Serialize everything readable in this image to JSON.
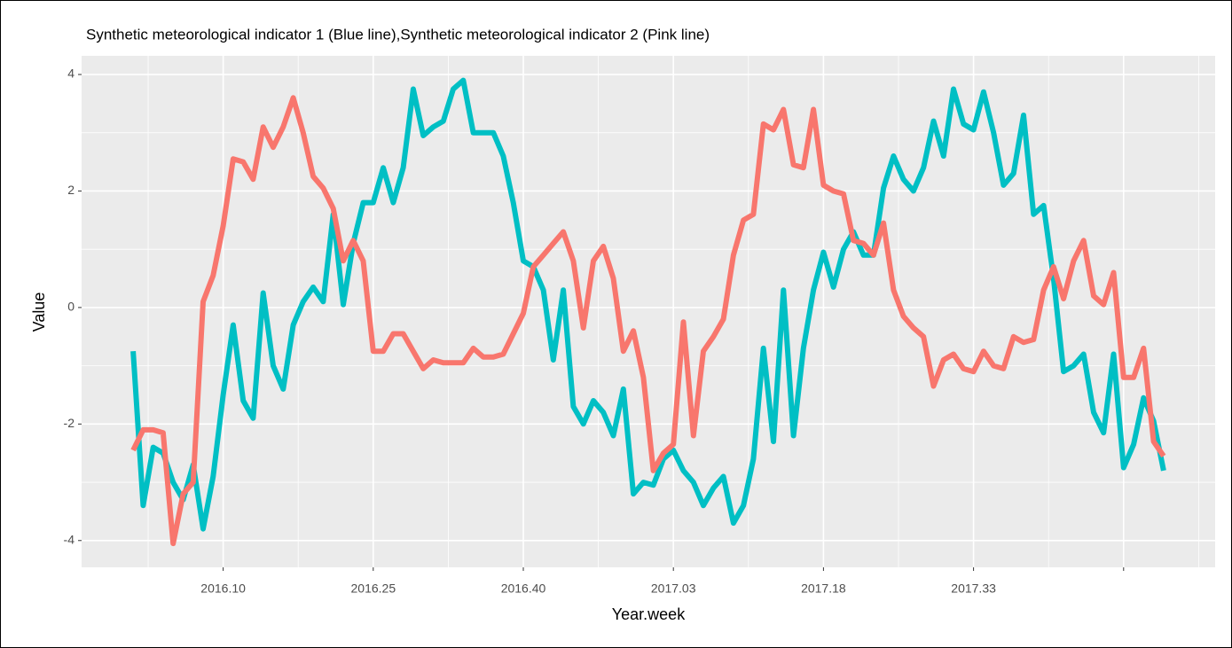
{
  "chart_data": {
    "type": "line",
    "title": "Synthetic meteorological indicator 1 (Blue line),Synthetic meteorological indicator 2 (Pink line)",
    "x_label": "Year.week",
    "y_label": "Value",
    "categories": [
      null,
      null,
      null,
      null,
      null,
      null,
      null,
      null,
      null,
      "2016.10",
      null,
      null,
      null,
      null,
      null,
      null,
      null,
      null,
      null,
      null,
      null,
      null,
      null,
      null,
      "2016.25",
      null,
      null,
      null,
      null,
      null,
      null,
      null,
      null,
      null,
      null,
      null,
      null,
      null,
      null,
      "2016.40",
      null,
      null,
      null,
      null,
      null,
      null,
      null,
      null,
      null,
      null,
      null,
      null,
      null,
      null,
      "2017.03",
      null,
      null,
      null,
      null,
      null,
      null,
      null,
      null,
      null,
      null,
      null,
      null,
      null,
      null,
      "2017.18",
      null,
      null,
      null,
      null,
      null,
      null,
      null,
      null,
      null,
      null,
      null,
      null,
      null,
      null,
      "2017.33",
      null,
      null,
      null,
      null,
      null,
      null,
      null,
      null,
      null,
      null,
      null,
      null,
      null,
      null,
      null,
      null,
      null,
      null,
      null
    ],
    "series": [
      {
        "name": "Synthetic meteorological indicator 1",
        "color": "#00BFC4",
        "values": [
          -0.75,
          -3.4,
          -2.4,
          -2.5,
          -3.0,
          -3.3,
          -2.7,
          -3.8,
          -2.9,
          -1.5,
          -0.3,
          -1.6,
          -1.9,
          0.25,
          -1.0,
          -1.4,
          -0.3,
          0.1,
          0.35,
          0.1,
          1.6,
          0.05,
          1.1,
          1.8,
          1.8,
          2.4,
          1.8,
          2.4,
          3.75,
          2.95,
          3.1,
          3.2,
          3.75,
          3.9,
          3.0,
          3.0,
          3.0,
          2.6,
          1.8,
          0.8,
          0.7,
          0.3,
          -0.9,
          0.3,
          -1.7,
          -2.0,
          -1.6,
          -1.8,
          -2.2,
          -1.4,
          -3.2,
          -3.0,
          -3.05,
          -2.6,
          -2.45,
          -2.8,
          -3.0,
          -3.4,
          -3.1,
          -2.9,
          -3.7,
          -3.4,
          -2.6,
          -0.7,
          -2.3,
          0.3,
          -2.2,
          -0.7,
          0.3,
          0.95,
          0.35,
          1.0,
          1.3,
          0.9,
          0.9,
          2.05,
          2.6,
          2.2,
          2.0,
          2.4,
          3.2,
          2.6,
          3.75,
          3.15,
          3.05,
          3.7,
          3.0,
          2.1,
          2.3,
          3.3,
          1.6,
          1.75,
          0.5,
          -1.1,
          -1.0,
          -0.8,
          -1.8,
          -2.15,
          -0.8,
          -2.75,
          -2.35,
          -1.55,
          -1.95,
          -2.8
        ]
      },
      {
        "name": "Synthetic meteorological indicator 2",
        "color": "#F8766D",
        "values": [
          -2.45,
          -2.1,
          -2.1,
          -2.15,
          -4.05,
          -3.2,
          -3.0,
          0.1,
          0.55,
          1.4,
          2.55,
          2.5,
          2.2,
          3.1,
          2.75,
          3.1,
          3.6,
          3.0,
          2.25,
          2.05,
          1.7,
          0.8,
          1.15,
          0.8,
          -0.75,
          -0.75,
          -0.45,
          -0.45,
          -0.75,
          -1.05,
          -0.9,
          -0.95,
          -0.95,
          -0.95,
          -0.7,
          -0.85,
          -0.85,
          -0.8,
          -0.45,
          -0.1,
          0.7,
          0.9,
          1.1,
          1.3,
          0.8,
          -0.35,
          0.8,
          1.05,
          0.5,
          -0.75,
          -0.4,
          -1.2,
          -2.8,
          -2.5,
          -2.35,
          -0.25,
          -2.2,
          -0.75,
          -0.5,
          -0.2,
          0.9,
          1.5,
          1.6,
          3.15,
          3.05,
          3.4,
          2.45,
          2.4,
          3.4,
          2.1,
          2.0,
          1.95,
          1.15,
          1.1,
          0.9,
          1.45,
          0.3,
          -0.15,
          -0.35,
          -0.5,
          -1.35,
          -0.9,
          -0.8,
          -1.05,
          -1.1,
          -0.75,
          -1.0,
          -1.05,
          -0.5,
          -0.6,
          -0.55,
          0.3,
          0.7,
          0.15,
          0.8,
          1.15,
          0.2,
          0.05,
          0.6,
          -1.2,
          -1.2,
          -0.7,
          -2.3,
          -2.55
        ]
      }
    ],
    "ylim": [
      -4.46,
      4.32
    ],
    "yticks": [
      -4,
      -2,
      0,
      2,
      4
    ],
    "grid": true
  }
}
